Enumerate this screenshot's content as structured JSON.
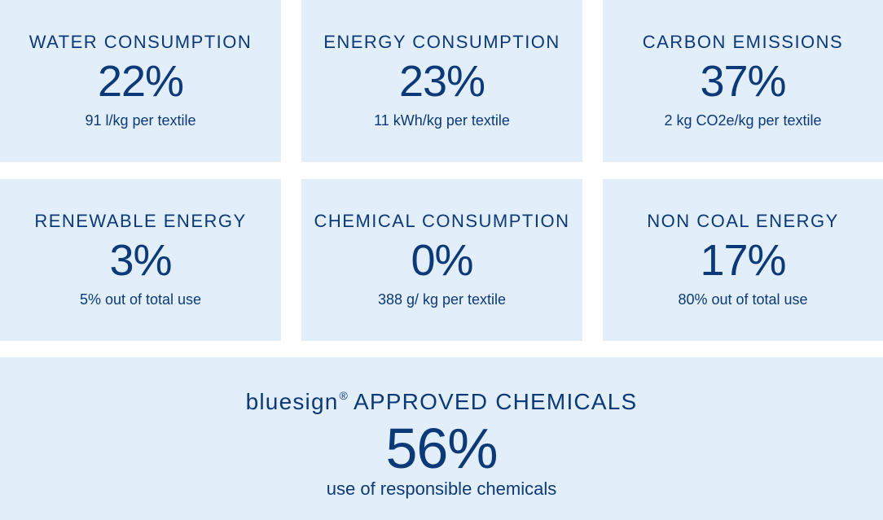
{
  "tiles": [
    {
      "title": "WATER CONSUMPTION",
      "value": "22%",
      "sub": "91 l/kg per textile"
    },
    {
      "title": "ENERGY CONSUMPTION",
      "value": "23%",
      "sub": "11 kWh/kg per textile"
    },
    {
      "title": "CARBON EMISSIONS",
      "value": "37%",
      "sub": "2 kg CO2e/kg per textile"
    },
    {
      "title": "RENEWABLE ENERGY",
      "value": "3%",
      "sub": "5% out of total use"
    },
    {
      "title": "CHEMICAL CONSUMPTION",
      "value": "0%",
      "sub": "388 g/ kg per textile"
    },
    {
      "title": "NON COAL ENERGY",
      "value": "17%",
      "sub": "80% out of total use"
    }
  ],
  "highlight": {
    "brand": "bluesign",
    "reg_mark": "®",
    "title": "APPROVED CHEMICALS",
    "value": "56%",
    "sub": "use of responsible chemicals"
  },
  "colors": {
    "tile_background": "#e2eef9",
    "text": "#0c3a78",
    "page_background": "#ffffff"
  }
}
